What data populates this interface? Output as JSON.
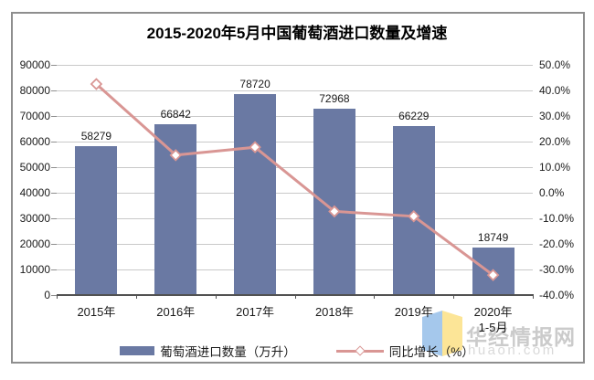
{
  "chart_data": {
    "type": "bar",
    "combo": "bar+line",
    "title": "2015-2020年5月中国葡萄酒进口数量及增速",
    "categories": [
      "2015年",
      "2016年",
      "2017年",
      "2018年",
      "2019年",
      "2020年"
    ],
    "category_sublabels": [
      "",
      "",
      "",
      "",
      "",
      "1-5月"
    ],
    "series": [
      {
        "name": "葡萄酒进口数量（万升）",
        "type": "bar",
        "axis": "left",
        "color": "#6a79a3",
        "values": [
          58279,
          66842,
          78720,
          72968,
          66229,
          18749
        ]
      },
      {
        "name": "同比增长（%）",
        "type": "line",
        "axis": "right",
        "color": "#d99694",
        "marker": "diamond",
        "marker_fill": "#ffffff",
        "values": [
          42.5,
          14.7,
          17.8,
          -7.3,
          -9.2,
          -32.2
        ]
      }
    ],
    "left_axis": {
      "min": 0,
      "max": 90000,
      "step": 10000,
      "tick_labels": [
        "90000",
        "80000",
        "70000",
        "60000",
        "50000",
        "40000",
        "30000",
        "20000",
        "10000",
        "0"
      ]
    },
    "right_axis": {
      "min": -40,
      "max": 50,
      "step": 10,
      "tick_labels": [
        "50.0%",
        "40.0%",
        "30.0%",
        "20.0%",
        "10.0%",
        "0.0%",
        "-10.0%",
        "-20.0%",
        "-30.0%",
        "-40.0%"
      ]
    },
    "grid": true,
    "legend_position": "bottom"
  },
  "watermark": {
    "site_name": "华经情报网",
    "site_url": "huaon.com",
    "logo_blue": "#a5c8ec",
    "logo_yellow": "#fce597"
  },
  "colors": {
    "bar": "#6a79a3",
    "line": "#d99694",
    "grid": "#c9c9c9",
    "axis": "#525252",
    "frame_border": "#8e8e8e",
    "text": "#1a1a1a",
    "watermark_text": "#cbcbcb"
  }
}
